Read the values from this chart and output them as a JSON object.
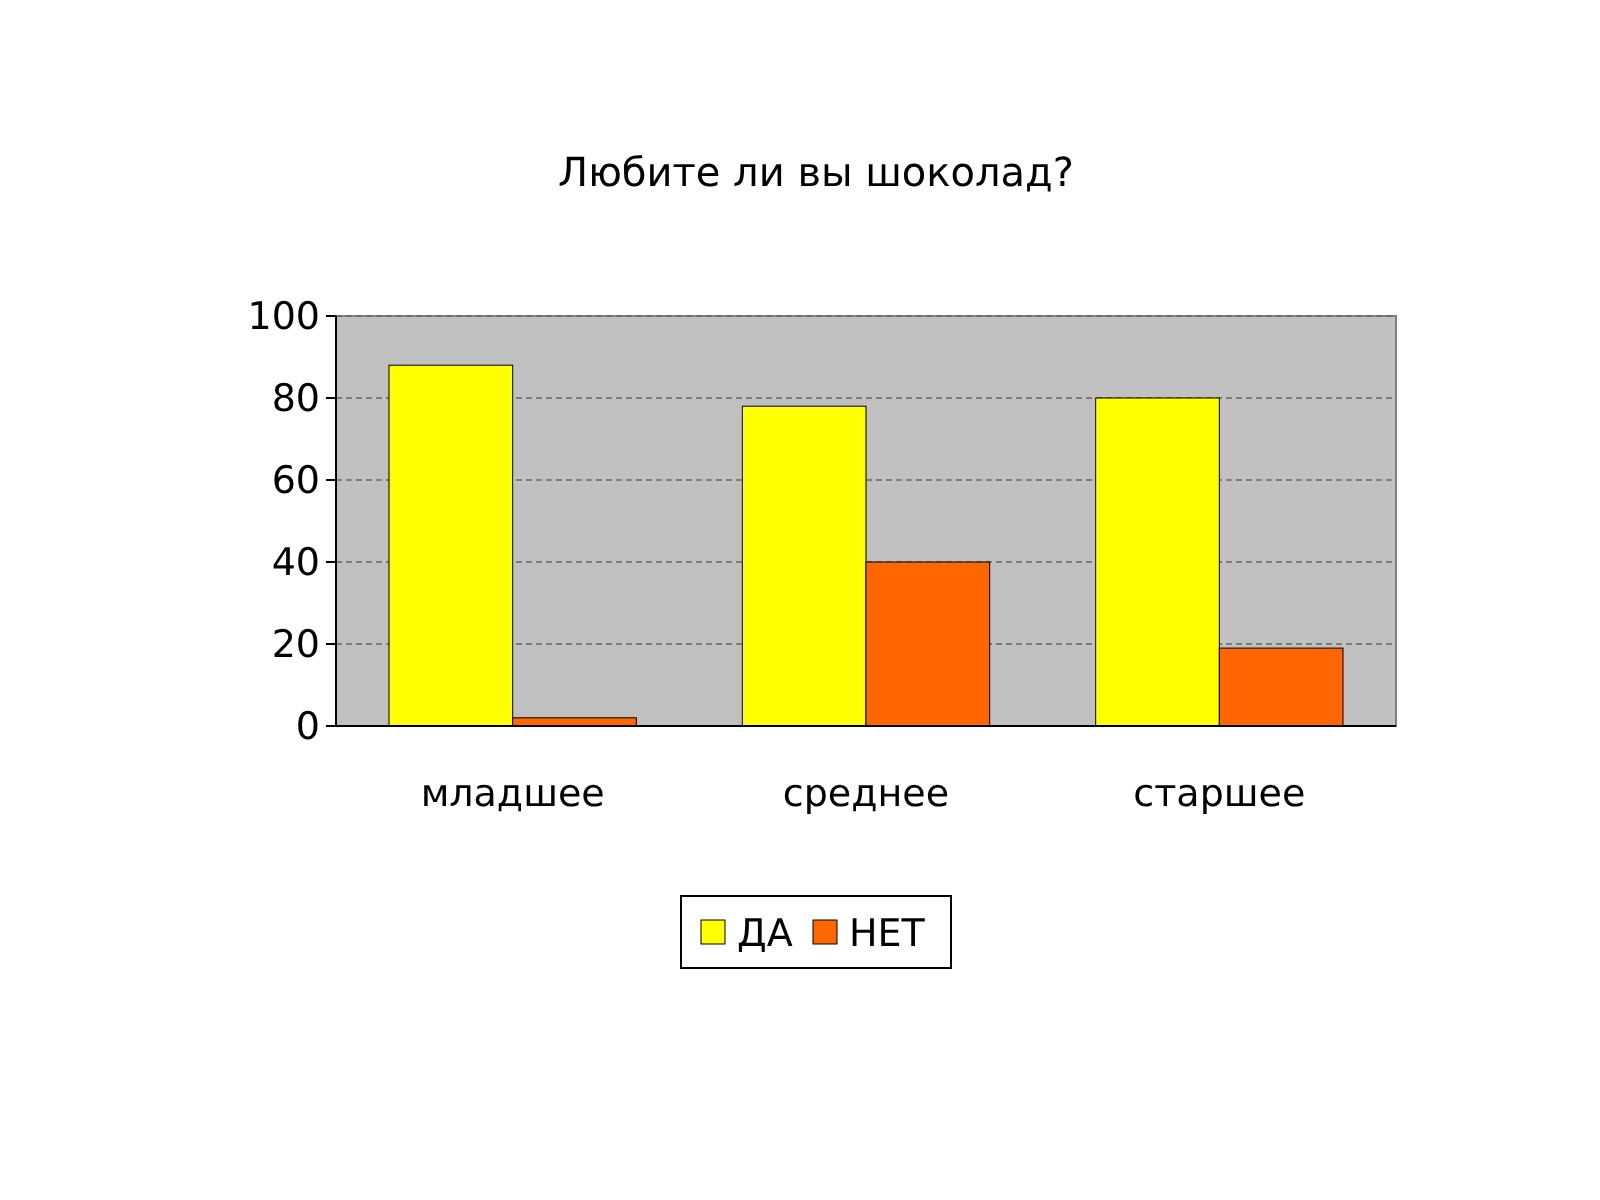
{
  "chart_data": {
    "type": "bar",
    "title": "Любите ли вы шоколад?",
    "categories": [
      "младшее",
      "среднее",
      "старшее"
    ],
    "series": [
      {
        "name": "ДА",
        "color": "#ffff00",
        "values": [
          88,
          78,
          80
        ]
      },
      {
        "name": "НЕТ",
        "color": "#ff6600",
        "values": [
          2,
          40,
          19
        ]
      }
    ],
    "ylim": [
      0,
      100
    ],
    "yticks": [
      0,
      20,
      40,
      60,
      80,
      100
    ],
    "grid": "y",
    "legend": "bottom"
  }
}
